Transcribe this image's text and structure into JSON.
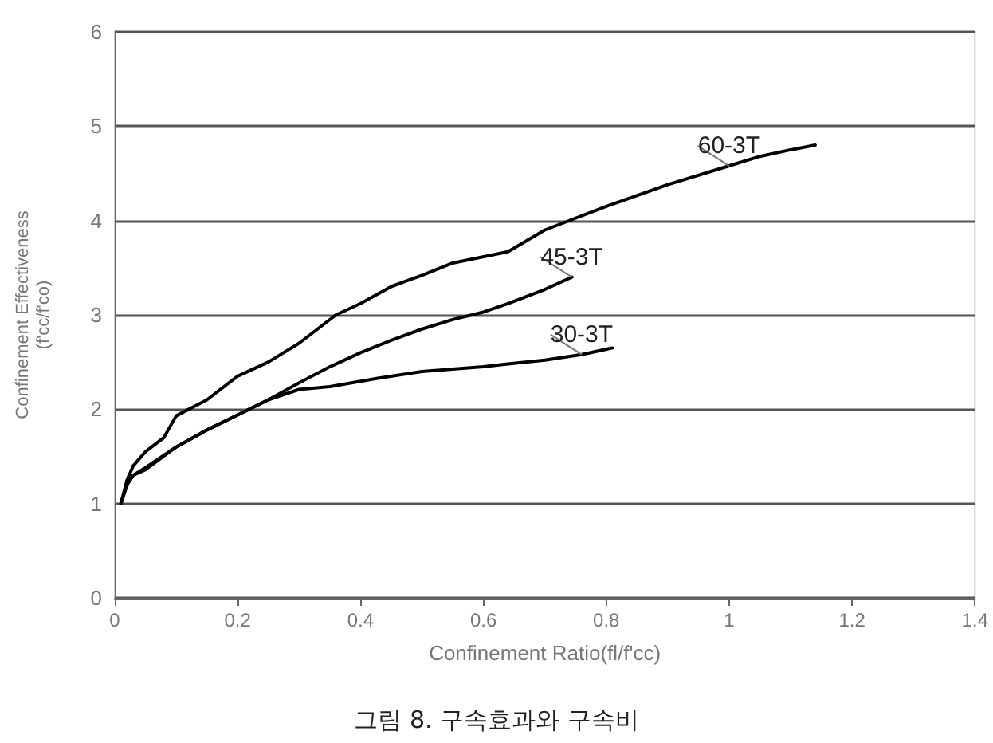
{
  "chart_data": {
    "type": "line",
    "title": "그림 8. 구속효과와 구속비",
    "xlabel": "Confinement Ratio(fl/f'cc)",
    "ylabel": "Confinement Effectiveness\n(f'cc/f'co)",
    "xlim": [
      0,
      1.4
    ],
    "xticks": [
      0,
      0.2,
      0.4,
      0.6,
      0.8,
      1,
      1.2,
      1.4
    ],
    "ylim": [
      0,
      6
    ],
    "yticks": [
      0,
      1,
      2,
      3,
      4,
      5,
      6
    ],
    "grid": "y",
    "legend": false,
    "marker": "none",
    "line_style": "solid",
    "series": [
      {
        "name": "60-3T",
        "color": "#000000",
        "x": [
          0.01,
          0.02,
          0.03,
          0.05,
          0.08,
          0.1,
          0.15,
          0.2,
          0.25,
          0.3,
          0.36,
          0.4,
          0.45,
          0.5,
          0.55,
          0.64,
          0.7,
          0.8,
          0.9,
          1.0,
          1.05,
          1.1,
          1.14
        ],
        "values": [
          1.0,
          1.25,
          1.4,
          1.55,
          1.7,
          1.93,
          2.1,
          2.35,
          2.5,
          2.7,
          3.0,
          3.12,
          3.3,
          3.42,
          3.55,
          3.67,
          3.9,
          4.15,
          4.38,
          4.58,
          4.68,
          4.75,
          4.8
        ]
      },
      {
        "name": "45-3T",
        "color": "#000000",
        "x": [
          0.01,
          0.02,
          0.03,
          0.05,
          0.1,
          0.15,
          0.2,
          0.25,
          0.3,
          0.35,
          0.4,
          0.45,
          0.5,
          0.55,
          0.6,
          0.64,
          0.7,
          0.744
        ],
        "values": [
          1.0,
          1.2,
          1.3,
          1.38,
          1.6,
          1.78,
          1.94,
          2.1,
          2.28,
          2.45,
          2.6,
          2.73,
          2.85,
          2.95,
          3.03,
          3.12,
          3.27,
          3.4
        ]
      },
      {
        "name": "30-3T",
        "color": "#000000",
        "x": [
          0.01,
          0.02,
          0.03,
          0.05,
          0.1,
          0.15,
          0.2,
          0.25,
          0.3,
          0.35,
          0.43,
          0.5,
          0.6,
          0.64,
          0.7,
          0.76,
          0.81
        ],
        "values": [
          1.0,
          1.2,
          1.3,
          1.36,
          1.6,
          1.78,
          1.94,
          2.1,
          2.21,
          2.24,
          2.33,
          2.4,
          2.45,
          2.48,
          2.52,
          2.58,
          2.65
        ]
      }
    ]
  }
}
